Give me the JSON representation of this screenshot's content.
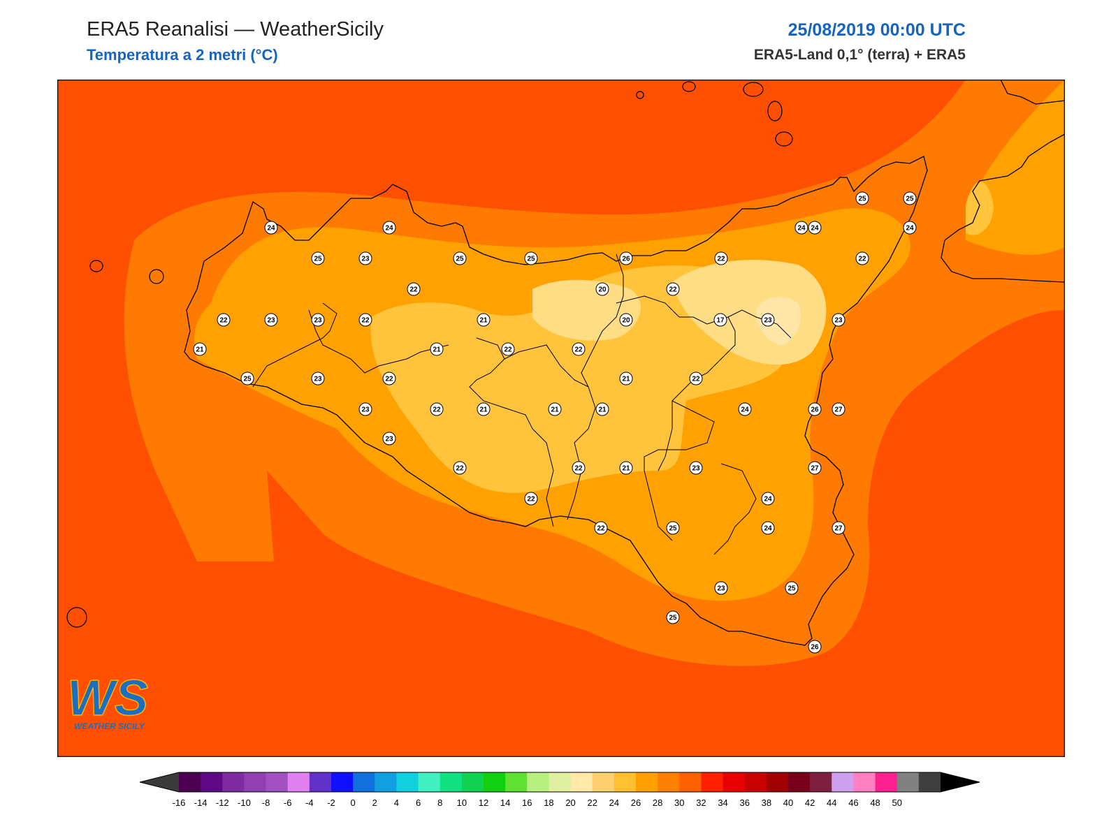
{
  "header": {
    "title": "ERA5 Reanalisi — WeatherSicily",
    "subtitle": "Temperatura a 2 metri (°C)",
    "datetime": "25/08/2019 00:00 UTC",
    "source": "ERA5-Land 0,1° (terra) + ERA5"
  },
  "logo": {
    "letters": "WS",
    "text": "WEATHER SICILY"
  },
  "map": {
    "field_colors": {
      "sea": "#fe5000",
      "coast": "#ff7a00",
      "inland": "#ffa100",
      "warm_mid": "#ffc43c",
      "cool": "#ffdd85",
      "coolest": "#ffe6a8"
    },
    "coastline_color": "#000000",
    "stations": [
      24,
      24,
      24,
      25,
      23,
      25,
      25,
      26,
      22,
      24,
      24,
      25,
      25,
      22,
      22,
      20,
      22,
      22,
      23,
      23,
      22,
      21,
      20,
      17,
      23,
      23,
      21,
      22,
      22,
      21,
      25,
      23,
      22,
      21,
      22,
      24,
      26,
      23,
      22,
      21,
      21,
      21,
      22,
      27,
      23,
      22,
      22,
      21,
      23,
      24,
      22,
      24,
      25,
      23,
      27,
      23,
      25,
      25,
      27,
      26
    ]
  },
  "colorbar": {
    "ticks": [
      "-16",
      "-14",
      "-12",
      "-10",
      "-8",
      "-6",
      "-4",
      "-2",
      "0",
      "2",
      "4",
      "6",
      "8",
      "10",
      "12",
      "14",
      "16",
      "18",
      "20",
      "22",
      "24",
      "26",
      "28",
      "30",
      "32",
      "34",
      "36",
      "38",
      "40",
      "42",
      "44",
      "46",
      "48",
      "50"
    ],
    "colors": [
      "#4b0052",
      "#610886",
      "#7f2aa0",
      "#9040b0",
      "#a050c0",
      "#e080f0",
      "#6030c8",
      "#1010ff",
      "#1070e0",
      "#10a0e0",
      "#10d0e0",
      "#40f0c0",
      "#10e080",
      "#10d050",
      "#10d010",
      "#60e030",
      "#b8f080",
      "#e0f0a0",
      "#ffe8a8",
      "#ffd070",
      "#ffc030",
      "#ffa000",
      "#ff8000",
      "#ff6000",
      "#ff2000",
      "#e80000",
      "#c80000",
      "#a00000",
      "#780018",
      "#802040",
      "#d0a0f0",
      "#ff80c0",
      "#ff2090",
      "#808080",
      "#404040"
    ],
    "under_color": "#3a3a3a",
    "over_color": "#000000"
  }
}
